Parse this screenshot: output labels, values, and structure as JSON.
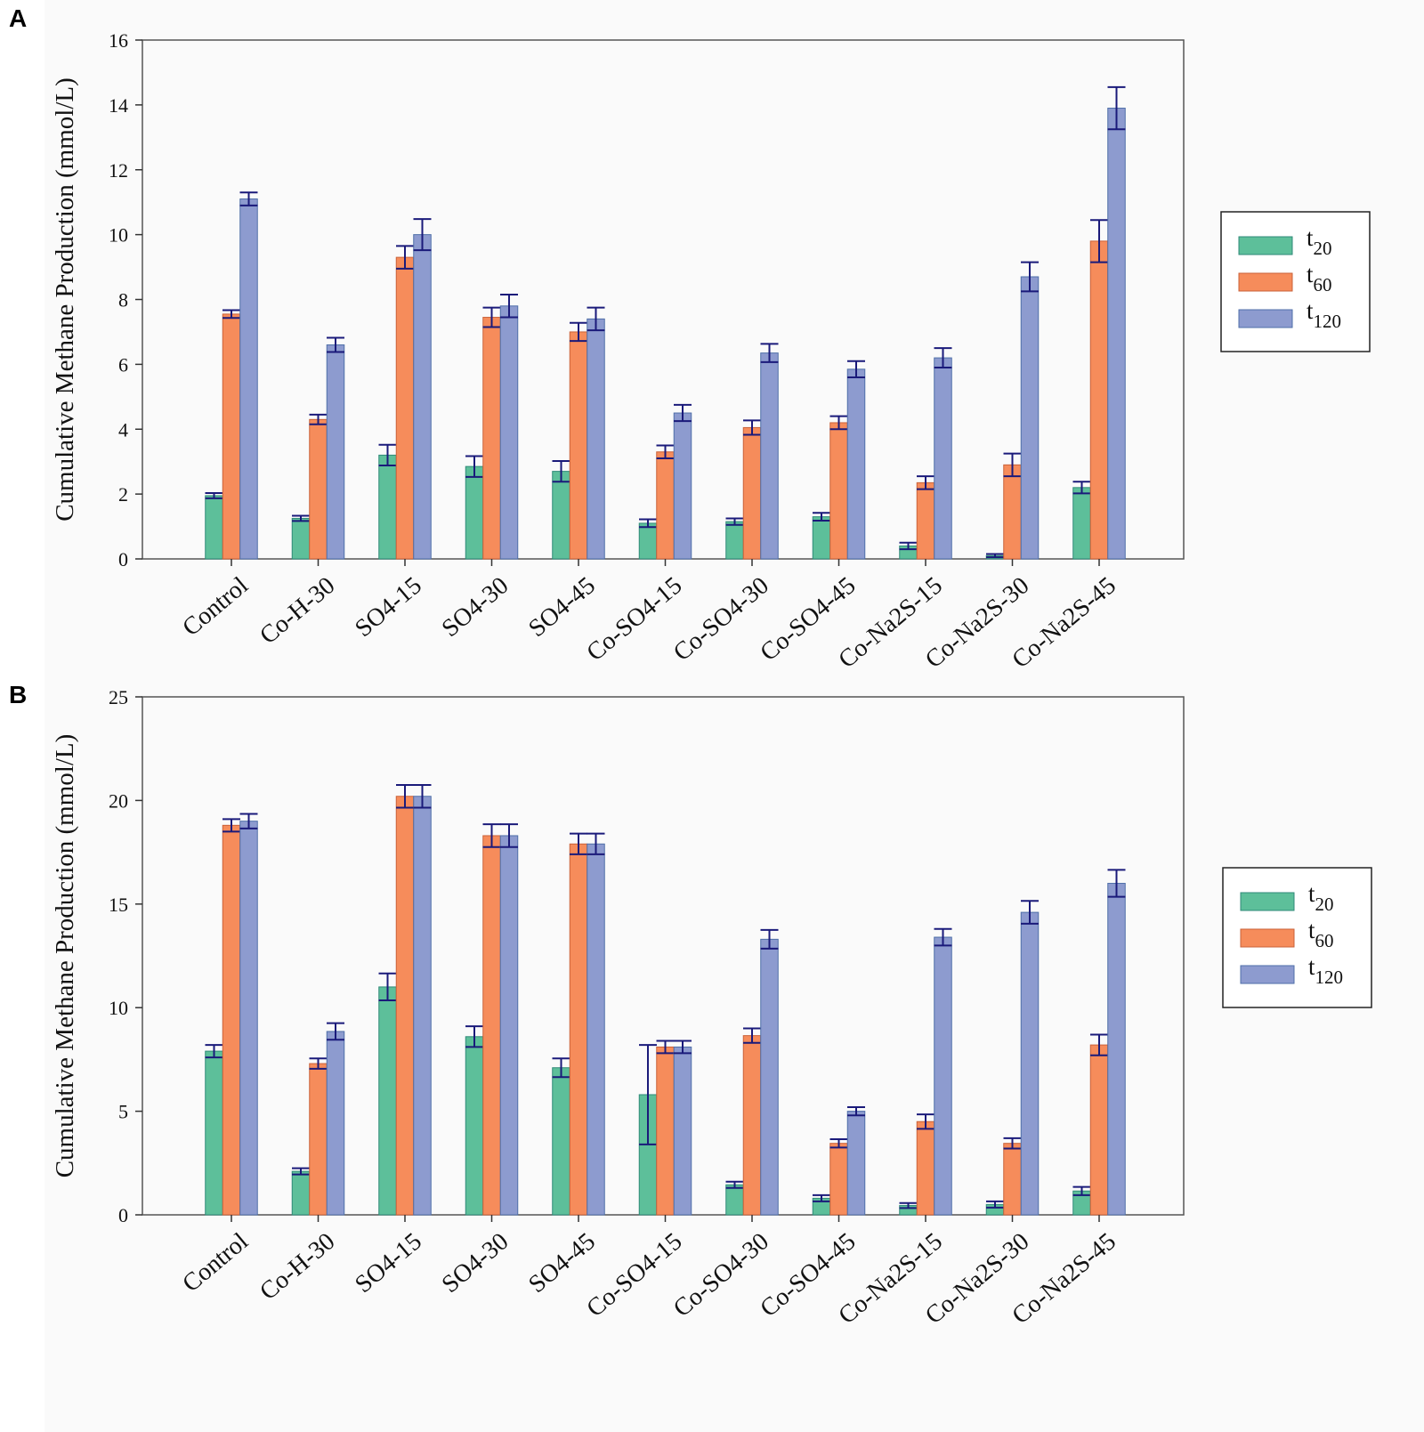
{
  "colors": {
    "t20": "#5dbf9a",
    "t60": "#f68c5b",
    "t120": "#8d9bcf",
    "bar_stroke_t20": "#2f8a78",
    "bar_stroke_t60": "#c9623a",
    "bar_stroke_t120": "#4f6fa8",
    "error_bar": "#1a1a7a",
    "panel_bg": "#fafafa"
  },
  "chart_data": [
    {
      "panel": "A",
      "type": "bar",
      "ylabel": "Cumulative Methane Production (mmol/L)",
      "ylim": [
        0,
        16
      ],
      "yticks": [
        "0",
        "2",
        "4",
        "6",
        "8",
        "10",
        "12",
        "14",
        "16"
      ],
      "categories": [
        "Control",
        "Co-H-30",
        "SO4-15",
        "SO4-30",
        "SO4-45",
        "Co-SO4-15",
        "Co-SO4-30",
        "Co-SO4-45",
        "Co-Na2S-15",
        "Co-Na2S-30",
        "Co-Na2S-45"
      ],
      "legend_position": "right",
      "series": [
        {
          "name": "t",
          "sub": "20",
          "key": "t20",
          "values": [
            1.95,
            1.25,
            3.2,
            2.85,
            2.7,
            1.1,
            1.15,
            1.3,
            0.4,
            0.1,
            2.2
          ],
          "errors": [
            0.08,
            0.08,
            0.32,
            0.32,
            0.32,
            0.12,
            0.1,
            0.12,
            0.1,
            0.05,
            0.18
          ]
        },
        {
          "name": "t",
          "sub": "60",
          "key": "t60",
          "values": [
            7.55,
            4.3,
            9.3,
            7.45,
            7.0,
            3.3,
            4.05,
            4.2,
            2.35,
            2.9,
            9.8
          ],
          "errors": [
            0.12,
            0.15,
            0.35,
            0.3,
            0.28,
            0.2,
            0.22,
            0.2,
            0.2,
            0.35,
            0.65
          ]
        },
        {
          "name": "t",
          "sub": "120",
          "key": "t120",
          "values": [
            11.1,
            6.6,
            10.0,
            7.8,
            7.4,
            4.5,
            6.35,
            5.85,
            6.2,
            8.7,
            13.9
          ],
          "errors": [
            0.2,
            0.22,
            0.48,
            0.35,
            0.35,
            0.25,
            0.28,
            0.25,
            0.3,
            0.45,
            0.65
          ]
        }
      ]
    },
    {
      "panel": "B",
      "type": "bar",
      "ylabel": "Cumulative Methane Production (mmol/L)",
      "ylim": [
        0,
        25
      ],
      "yticks": [
        "0",
        "5",
        "10",
        "15",
        "20",
        "25"
      ],
      "categories": [
        "Control",
        "Co-H-30",
        "SO4-15",
        "SO4-30",
        "SO4-45",
        "Co-SO4-15",
        "Co-SO4-30",
        "Co-SO4-45",
        "Co-Na2S-15",
        "Co-Na2S-30",
        "Co-Na2S-45"
      ],
      "legend_position": "right",
      "series": [
        {
          "name": "t",
          "sub": "20",
          "key": "t20",
          "values": [
            7.9,
            2.1,
            11.0,
            8.6,
            7.1,
            5.8,
            1.45,
            0.8,
            0.45,
            0.5,
            1.15
          ],
          "errors": [
            0.3,
            0.15,
            0.65,
            0.5,
            0.45,
            2.4,
            0.15,
            0.15,
            0.12,
            0.15,
            0.2
          ]
        },
        {
          "name": "t",
          "sub": "60",
          "key": "t60",
          "values": [
            18.8,
            7.3,
            20.2,
            18.3,
            17.9,
            8.1,
            8.65,
            3.45,
            4.5,
            3.45,
            8.2
          ],
          "errors": [
            0.3,
            0.25,
            0.55,
            0.55,
            0.5,
            0.3,
            0.35,
            0.2,
            0.35,
            0.25,
            0.5
          ]
        },
        {
          "name": "t",
          "sub": "120",
          "key": "t120",
          "values": [
            19.0,
            8.85,
            20.2,
            18.3,
            17.9,
            8.1,
            13.3,
            5.0,
            13.4,
            14.6,
            16.0
          ],
          "errors": [
            0.35,
            0.4,
            0.55,
            0.55,
            0.5,
            0.3,
            0.45,
            0.2,
            0.4,
            0.55,
            0.65
          ]
        }
      ]
    }
  ],
  "panels": {
    "A": {
      "label": "A"
    },
    "B": {
      "label": "B"
    }
  }
}
